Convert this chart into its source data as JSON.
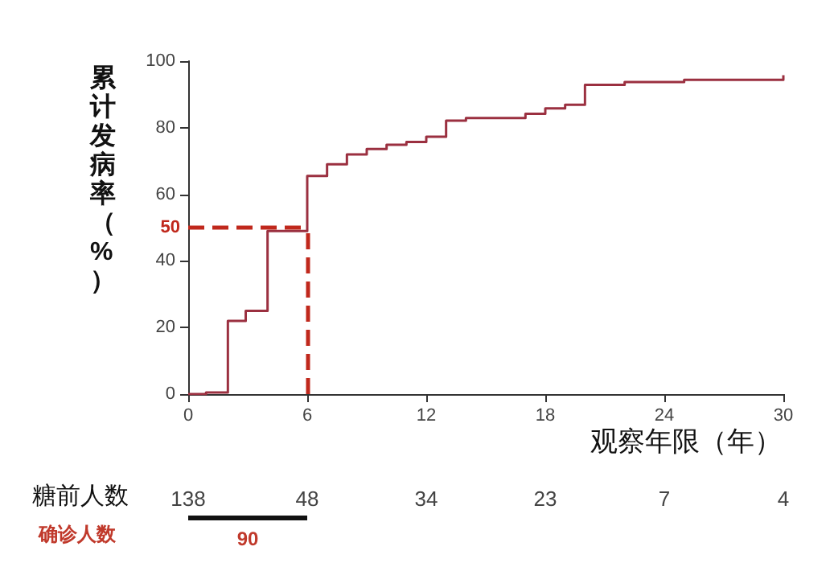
{
  "chart_data": {
    "type": "step",
    "ylabel": "累计发病率（%）",
    "xlabel": "观察年限（年）",
    "x": [
      0,
      0.9,
      2,
      2.9,
      4,
      6,
      7,
      8,
      9,
      10,
      11,
      12,
      13,
      14,
      17,
      18,
      19,
      20,
      22,
      25,
      30
    ],
    "series": [
      {
        "color": "#9b3040",
        "values": [
          0,
          0.5,
          22,
          25,
          49,
          65.5,
          69,
          72,
          73.6,
          74.9,
          75.7,
          77.3,
          82.1,
          82.9,
          84.2,
          85.8,
          86.9,
          92.9,
          93.7,
          94.4,
          95.8
        ]
      }
    ],
    "xlim": [
      0,
      30
    ],
    "xticks": [
      0,
      6,
      12,
      18,
      24,
      30
    ],
    "ylim": [
      0,
      100
    ],
    "yticks": [
      0,
      20,
      40,
      60,
      80,
      100
    ],
    "ref_lines": [
      {
        "axis": "y",
        "value": 50,
        "label": "50",
        "color": "#c0281c",
        "line_style": "dashed"
      },
      {
        "axis": "x",
        "value": 6,
        "color": "#c0281c",
        "line_style": "dashed"
      }
    ],
    "annotations": [
      "糖前人数",
      "138",
      "48",
      "34",
      "23",
      "7",
      "4",
      "确诊人数",
      "90"
    ],
    "grid": false,
    "marker": "none"
  }
}
